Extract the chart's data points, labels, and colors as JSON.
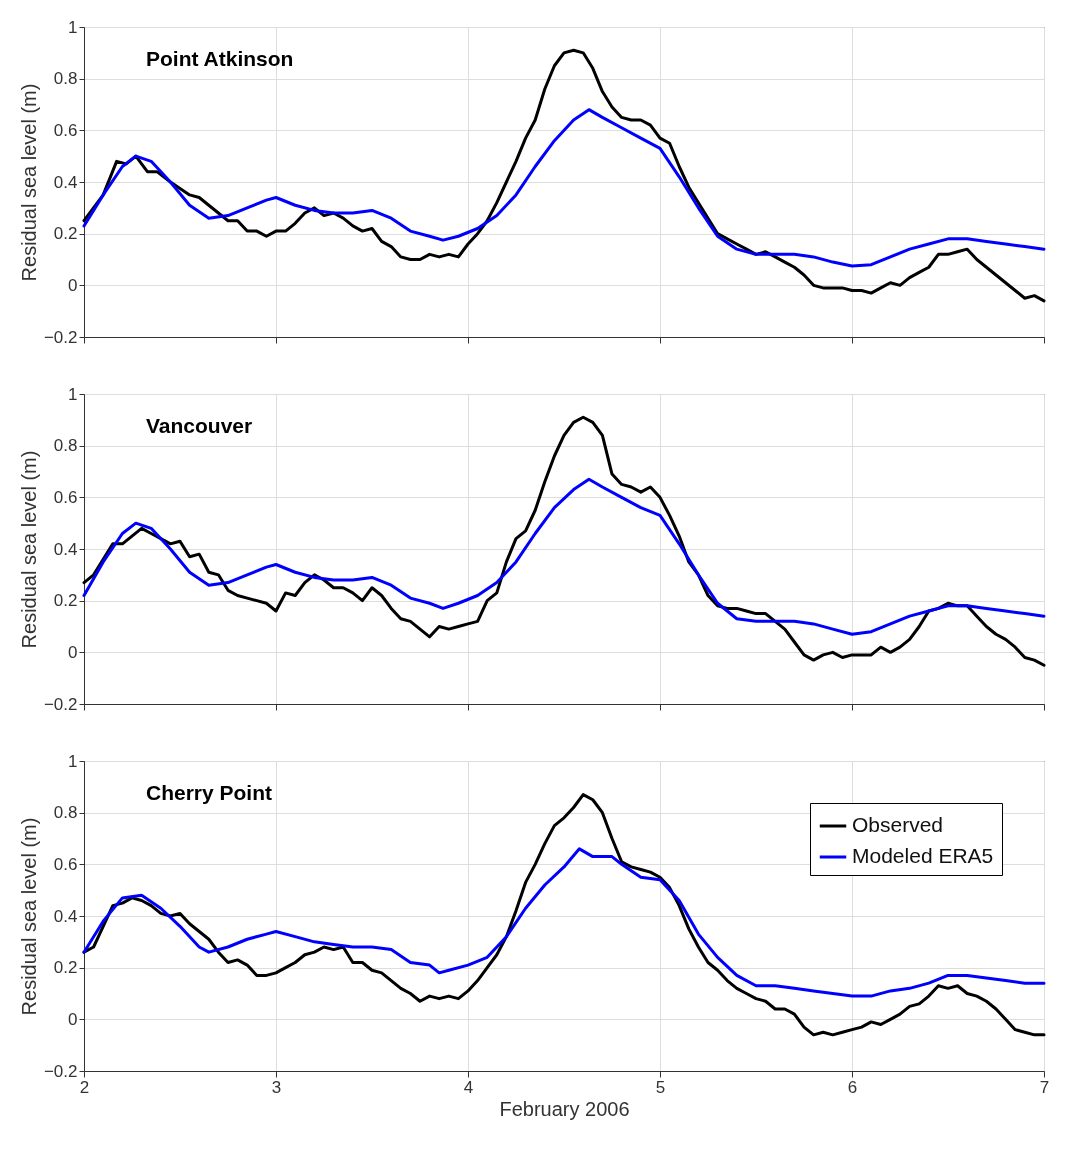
{
  "chart_data": [
    {
      "type": "line",
      "title": "Point Atkinson",
      "ylabel": "Residual sea level (m)",
      "xlim": [
        2,
        7
      ],
      "xticks": [
        2,
        3,
        4,
        5,
        6,
        7
      ],
      "ylim": [
        -0.2,
        1
      ],
      "yticks": [
        -0.2,
        0,
        0.2,
        0.4,
        0.6,
        0.8,
        1
      ],
      "grid": true,
      "tick_labels": "y",
      "legend": false,
      "series": [
        {
          "color": "#000000",
          "x": [
            2.0,
            2.1,
            2.17,
            2.22,
            2.27,
            2.33,
            2.38,
            2.45,
            2.55,
            2.6,
            2.65,
            2.7,
            2.75,
            2.8,
            2.85,
            2.9,
            2.95,
            3.0,
            3.05,
            3.1,
            3.15,
            3.2,
            3.25,
            3.3,
            3.35,
            3.4,
            3.45,
            3.5,
            3.55,
            3.6,
            3.65,
            3.7,
            3.75,
            3.8,
            3.85,
            3.9,
            3.95,
            4.0,
            4.05,
            4.1,
            4.15,
            4.2,
            4.25,
            4.3,
            4.35,
            4.4,
            4.45,
            4.5,
            4.55,
            4.6,
            4.65,
            4.7,
            4.75,
            4.8,
            4.85,
            4.9,
            4.95,
            5.0,
            5.05,
            5.1,
            5.15,
            5.2,
            5.25,
            5.3,
            5.35,
            5.4,
            5.45,
            5.5,
            5.55,
            5.6,
            5.65,
            5.7,
            5.75,
            5.8,
            5.85,
            5.9,
            5.95,
            6.0,
            6.05,
            6.1,
            6.15,
            6.2,
            6.25,
            6.3,
            6.35,
            6.4,
            6.45,
            6.5,
            6.55,
            6.6,
            6.65,
            6.7,
            6.75,
            6.8,
            6.85,
            6.9,
            6.95,
            7.0
          ],
          "values": [
            0.25,
            0.35,
            0.48,
            0.47,
            0.5,
            0.44,
            0.44,
            0.4,
            0.35,
            0.34,
            0.31,
            0.28,
            0.25,
            0.25,
            0.21,
            0.21,
            0.19,
            0.21,
            0.21,
            0.24,
            0.28,
            0.3,
            0.27,
            0.28,
            0.26,
            0.23,
            0.21,
            0.22,
            0.17,
            0.15,
            0.11,
            0.1,
            0.1,
            0.12,
            0.11,
            0.12,
            0.11,
            0.16,
            0.2,
            0.25,
            0.32,
            0.4,
            0.48,
            0.57,
            0.64,
            0.76,
            0.85,
            0.9,
            0.91,
            0.9,
            0.84,
            0.75,
            0.69,
            0.65,
            0.64,
            0.64,
            0.62,
            0.57,
            0.55,
            0.46,
            0.38,
            0.32,
            0.26,
            0.2,
            0.18,
            0.16,
            0.14,
            0.12,
            0.13,
            0.11,
            0.09,
            0.07,
            0.04,
            0.0,
            -0.01,
            -0.01,
            -0.01,
            -0.02,
            -0.02,
            -0.03,
            -0.01,
            0.01,
            0.0,
            0.03,
            0.05,
            0.07,
            0.12,
            0.12,
            0.13,
            0.14,
            0.1,
            0.07,
            0.04,
            0.01,
            -0.02,
            -0.05,
            -0.04,
            -0.06
          ]
        },
        {
          "color": "#0000ff",
          "x": [
            2.0,
            2.1,
            2.2,
            2.27,
            2.35,
            2.45,
            2.55,
            2.65,
            2.75,
            2.85,
            2.95,
            3.0,
            3.1,
            3.2,
            3.3,
            3.4,
            3.5,
            3.6,
            3.7,
            3.8,
            3.87,
            3.95,
            4.05,
            4.15,
            4.25,
            4.35,
            4.45,
            4.55,
            4.63,
            4.7,
            4.8,
            4.9,
            5.0,
            5.1,
            5.2,
            5.3,
            5.4,
            5.5,
            5.6,
            5.7,
            5.8,
            5.9,
            6.0,
            6.1,
            6.2,
            6.3,
            6.4,
            6.5,
            6.6,
            6.7,
            6.8,
            6.9,
            7.0
          ],
          "values": [
            0.23,
            0.35,
            0.46,
            0.5,
            0.48,
            0.4,
            0.31,
            0.26,
            0.27,
            0.3,
            0.33,
            0.34,
            0.31,
            0.29,
            0.28,
            0.28,
            0.29,
            0.26,
            0.21,
            0.19,
            0.175,
            0.19,
            0.22,
            0.27,
            0.35,
            0.46,
            0.56,
            0.64,
            0.68,
            0.65,
            0.61,
            0.57,
            0.53,
            0.42,
            0.3,
            0.19,
            0.14,
            0.12,
            0.12,
            0.12,
            0.11,
            0.09,
            0.075,
            0.08,
            0.11,
            0.14,
            0.16,
            0.18,
            0.18,
            0.17,
            0.16,
            0.15,
            0.14
          ]
        }
      ]
    },
    {
      "type": "line",
      "title": "Vancouver",
      "ylabel": "Residual sea level (m)",
      "xlim": [
        2,
        7
      ],
      "xticks": [
        2,
        3,
        4,
        5,
        6,
        7
      ],
      "ylim": [
        -0.2,
        1
      ],
      "yticks": [
        -0.2,
        0,
        0.2,
        0.4,
        0.6,
        0.8,
        1
      ],
      "grid": true,
      "tick_labels": "y",
      "legend": false,
      "series": [
        {
          "color": "#000000",
          "x": [
            2.0,
            2.05,
            2.1,
            2.15,
            2.2,
            2.25,
            2.3,
            2.35,
            2.4,
            2.45,
            2.5,
            2.55,
            2.6,
            2.65,
            2.7,
            2.75,
            2.8,
            2.85,
            2.9,
            2.95,
            3.0,
            3.05,
            3.1,
            3.15,
            3.2,
            3.25,
            3.3,
            3.35,
            3.4,
            3.45,
            3.5,
            3.55,
            3.6,
            3.65,
            3.7,
            3.75,
            3.8,
            3.85,
            3.9,
            3.95,
            4.0,
            4.05,
            4.1,
            4.15,
            4.2,
            4.25,
            4.3,
            4.35,
            4.4,
            4.45,
            4.5,
            4.55,
            4.6,
            4.65,
            4.7,
            4.75,
            4.8,
            4.85,
            4.9,
            4.95,
            5.0,
            5.05,
            5.1,
            5.15,
            5.2,
            5.25,
            5.3,
            5.35,
            5.4,
            5.45,
            5.5,
            5.55,
            5.6,
            5.65,
            5.7,
            5.75,
            5.8,
            5.85,
            5.9,
            5.95,
            6.0,
            6.05,
            6.1,
            6.15,
            6.2,
            6.25,
            6.3,
            6.35,
            6.4,
            6.45,
            6.5,
            6.55,
            6.6,
            6.65,
            6.7,
            6.75,
            6.8,
            6.85,
            6.9,
            6.95,
            7.0
          ],
          "values": [
            0.27,
            0.3,
            0.36,
            0.42,
            0.42,
            0.45,
            0.48,
            0.46,
            0.44,
            0.42,
            0.43,
            0.37,
            0.38,
            0.31,
            0.3,
            0.24,
            0.22,
            0.21,
            0.2,
            0.19,
            0.16,
            0.23,
            0.22,
            0.27,
            0.3,
            0.28,
            0.25,
            0.25,
            0.23,
            0.2,
            0.25,
            0.22,
            0.17,
            0.13,
            0.12,
            0.09,
            0.06,
            0.1,
            0.09,
            0.1,
            0.11,
            0.12,
            0.2,
            0.23,
            0.35,
            0.44,
            0.47,
            0.55,
            0.66,
            0.76,
            0.84,
            0.89,
            0.91,
            0.89,
            0.84,
            0.69,
            0.65,
            0.64,
            0.62,
            0.64,
            0.6,
            0.53,
            0.45,
            0.35,
            0.3,
            0.22,
            0.18,
            0.17,
            0.17,
            0.16,
            0.15,
            0.15,
            0.12,
            0.09,
            0.04,
            -0.01,
            -0.03,
            -0.01,
            0.0,
            -0.02,
            -0.01,
            -0.01,
            -0.01,
            0.02,
            0.0,
            0.02,
            0.05,
            0.1,
            0.16,
            0.17,
            0.19,
            0.18,
            0.18,
            0.14,
            0.1,
            0.07,
            0.05,
            0.02,
            -0.02,
            -0.03,
            -0.05
          ]
        },
        {
          "color": "#0000ff",
          "x": [
            2.0,
            2.1,
            2.2,
            2.27,
            2.35,
            2.45,
            2.55,
            2.65,
            2.75,
            2.85,
            2.95,
            3.0,
            3.1,
            3.2,
            3.3,
            3.4,
            3.5,
            3.6,
            3.7,
            3.8,
            3.87,
            3.95,
            4.05,
            4.15,
            4.25,
            4.35,
            4.45,
            4.55,
            4.63,
            4.7,
            4.8,
            4.9,
            5.0,
            5.1,
            5.2,
            5.3,
            5.4,
            5.5,
            5.6,
            5.7,
            5.8,
            5.9,
            6.0,
            6.1,
            6.2,
            6.3,
            6.4,
            6.5,
            6.6,
            6.7,
            6.8,
            6.9,
            7.0
          ],
          "values": [
            0.22,
            0.35,
            0.46,
            0.5,
            0.48,
            0.4,
            0.31,
            0.26,
            0.27,
            0.3,
            0.33,
            0.34,
            0.31,
            0.29,
            0.28,
            0.28,
            0.29,
            0.26,
            0.21,
            0.19,
            0.17,
            0.19,
            0.22,
            0.27,
            0.35,
            0.46,
            0.56,
            0.63,
            0.67,
            0.64,
            0.6,
            0.56,
            0.53,
            0.42,
            0.3,
            0.19,
            0.13,
            0.12,
            0.12,
            0.12,
            0.11,
            0.09,
            0.07,
            0.08,
            0.11,
            0.14,
            0.16,
            0.18,
            0.18,
            0.17,
            0.16,
            0.15,
            0.14
          ]
        }
      ]
    },
    {
      "type": "line",
      "title": "Cherry Point",
      "xlabel": "February 2006",
      "ylabel": "Residual sea level (m)",
      "xlim": [
        2,
        7
      ],
      "xticks": [
        2,
        3,
        4,
        5,
        6,
        7
      ],
      "ylim": [
        -0.2,
        1
      ],
      "yticks": [
        -0.2,
        0,
        0.2,
        0.4,
        0.6,
        0.8,
        1
      ],
      "grid": true,
      "legend": "top right",
      "series": [
        {
          "name": "Observed",
          "color": "#000000",
          "x": [
            2.0,
            2.05,
            2.1,
            2.15,
            2.2,
            2.25,
            2.3,
            2.35,
            2.4,
            2.45,
            2.5,
            2.55,
            2.6,
            2.65,
            2.7,
            2.75,
            2.8,
            2.85,
            2.9,
            2.95,
            3.0,
            3.05,
            3.1,
            3.15,
            3.2,
            3.25,
            3.3,
            3.35,
            3.4,
            3.45,
            3.5,
            3.55,
            3.6,
            3.65,
            3.7,
            3.75,
            3.8,
            3.85,
            3.9,
            3.95,
            4.0,
            4.05,
            4.1,
            4.15,
            4.2,
            4.25,
            4.3,
            4.35,
            4.4,
            4.45,
            4.5,
            4.55,
            4.6,
            4.65,
            4.7,
            4.75,
            4.8,
            4.85,
            4.9,
            4.95,
            5.0,
            5.05,
            5.1,
            5.15,
            5.2,
            5.25,
            5.3,
            5.35,
            5.4,
            5.45,
            5.5,
            5.55,
            5.6,
            5.65,
            5.7,
            5.75,
            5.8,
            5.85,
            5.9,
            5.95,
            6.0,
            6.05,
            6.1,
            6.15,
            6.2,
            6.25,
            6.3,
            6.35,
            6.4,
            6.45,
            6.5,
            6.55,
            6.6,
            6.65,
            6.7,
            6.75,
            6.8,
            6.85,
            6.9,
            6.95,
            7.0
          ],
          "values": [
            0.26,
            0.28,
            0.36,
            0.44,
            0.45,
            0.47,
            0.46,
            0.44,
            0.41,
            0.4,
            0.41,
            0.37,
            0.34,
            0.31,
            0.26,
            0.22,
            0.23,
            0.21,
            0.17,
            0.17,
            0.18,
            0.2,
            0.22,
            0.25,
            0.26,
            0.28,
            0.27,
            0.28,
            0.22,
            0.22,
            0.19,
            0.18,
            0.15,
            0.12,
            0.1,
            0.07,
            0.09,
            0.08,
            0.09,
            0.08,
            0.11,
            0.15,
            0.2,
            0.25,
            0.32,
            0.42,
            0.53,
            0.6,
            0.68,
            0.75,
            0.78,
            0.82,
            0.87,
            0.85,
            0.8,
            0.7,
            0.61,
            0.59,
            0.58,
            0.57,
            0.55,
            0.51,
            0.44,
            0.35,
            0.28,
            0.22,
            0.19,
            0.15,
            0.12,
            0.1,
            0.08,
            0.07,
            0.04,
            0.04,
            0.02,
            -0.03,
            -0.06,
            -0.05,
            -0.06,
            -0.05,
            -0.04,
            -0.03,
            -0.01,
            -0.02,
            0.0,
            0.02,
            0.05,
            0.06,
            0.09,
            0.13,
            0.12,
            0.13,
            0.1,
            0.09,
            0.07,
            0.04,
            0.0,
            -0.04,
            -0.05,
            -0.06,
            -0.06
          ]
        },
        {
          "name": "Modeled ERA5",
          "color": "#0000ff",
          "x": [
            2.0,
            2.1,
            2.2,
            2.3,
            2.4,
            2.5,
            2.6,
            2.65,
            2.75,
            2.85,
            2.95,
            3.0,
            3.1,
            3.2,
            3.3,
            3.4,
            3.5,
            3.6,
            3.7,
            3.8,
            3.85,
            3.9,
            4.0,
            4.1,
            4.2,
            4.3,
            4.4,
            4.5,
            4.58,
            4.65,
            4.75,
            4.8,
            4.9,
            5.0,
            5.1,
            5.2,
            5.3,
            5.4,
            5.5,
            5.6,
            5.7,
            5.8,
            5.9,
            6.0,
            6.1,
            6.2,
            6.3,
            6.4,
            6.5,
            6.6,
            6.7,
            6.8,
            6.9,
            7.0
          ],
          "values": [
            0.26,
            0.38,
            0.47,
            0.48,
            0.43,
            0.36,
            0.28,
            0.26,
            0.28,
            0.31,
            0.33,
            0.34,
            0.32,
            0.3,
            0.29,
            0.28,
            0.28,
            0.27,
            0.22,
            0.21,
            0.18,
            0.19,
            0.21,
            0.24,
            0.32,
            0.43,
            0.52,
            0.59,
            0.66,
            0.63,
            0.63,
            0.6,
            0.55,
            0.54,
            0.46,
            0.33,
            0.24,
            0.17,
            0.13,
            0.13,
            0.12,
            0.11,
            0.1,
            0.09,
            0.09,
            0.11,
            0.12,
            0.14,
            0.17,
            0.17,
            0.16,
            0.15,
            0.14,
            0.14
          ]
        }
      ]
    }
  ]
}
